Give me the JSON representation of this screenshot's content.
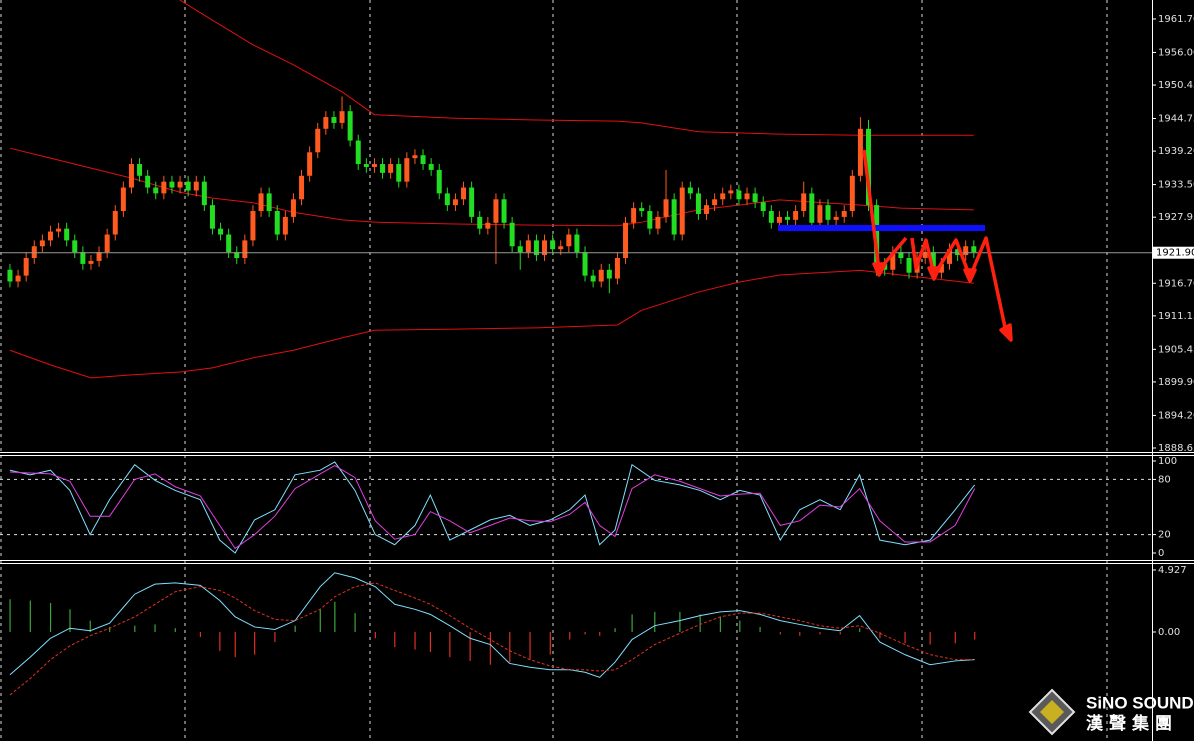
{
  "chart_data": [
    {
      "type": "candlestick",
      "xlim": [
        -1.23,
        141
      ],
      "ylim": [
        1887.97,
        1964.93
      ],
      "yticks": [
        {
          "value": 1961.7,
          "label": "1961.70"
        },
        {
          "value": 1956,
          "label": "1956.00"
        },
        1950.45,
        1944.75,
        {
          "value": 1939.2,
          "label": "1939.20"
        },
        {
          "value": 1933.5,
          "label": "1933.50"
        },
        1927.95,
        {
          "value": 1916.7,
          "label": "1916.70"
        },
        1911.15,
        1905.45,
        {
          "value": 1899.9,
          "label": "1899.90"
        },
        {
          "value": 1894.2,
          "label": "1894.20"
        },
        1888.65
      ],
      "current_price": {
        "value": 1921.9,
        "label": "1921.90"
      },
      "up_color": "#ff5a1f",
      "down_color": "#22dd22",
      "candles": [
        [
          1919,
          1920,
          1916,
          1917
        ],
        [
          1917,
          1919,
          1916,
          1918
        ],
        [
          1918,
          1922,
          1917,
          1921
        ],
        [
          1921,
          1924,
          1920,
          1923
        ],
        [
          1923,
          1925,
          1922,
          1924
        ],
        [
          1924,
          1926.5,
          1923,
          1925.5
        ],
        [
          1925.5,
          1927,
          1924.5,
          1926
        ],
        [
          1926,
          1927,
          1923,
          1924
        ],
        [
          1924,
          1925,
          1921,
          1922
        ],
        [
          1922,
          1923,
          1919,
          1920
        ],
        [
          1920,
          1921.5,
          1919,
          1920.5
        ],
        [
          1920.5,
          1923,
          1919.5,
          1922
        ],
        [
          1922,
          1926,
          1921,
          1925
        ],
        [
          1925,
          1930,
          1924,
          1929
        ],
        [
          1929,
          1934,
          1928,
          1933
        ],
        [
          1933,
          1938,
          1932,
          1937
        ],
        [
          1937,
          1938,
          1934,
          1935
        ],
        [
          1935,
          1936,
          1932,
          1933
        ],
        [
          1933,
          1934,
          1931,
          1932
        ],
        [
          1932,
          1935,
          1931,
          1934
        ],
        [
          1934,
          1935,
          1932,
          1933
        ],
        [
          1933,
          1935,
          1932,
          1934
        ],
        [
          1934,
          1935,
          1931.5,
          1932.5
        ],
        [
          1932.5,
          1935,
          1931.5,
          1934
        ],
        [
          1934,
          1935,
          1929,
          1930
        ],
        [
          1930,
          1931,
          1925,
          1926
        ],
        [
          1926,
          1927,
          1924,
          1925
        ],
        [
          1925,
          1926,
          1921,
          1922
        ],
        [
          1922,
          1923,
          1920,
          1921
        ],
        [
          1921,
          1925,
          1920,
          1924
        ],
        [
          1924,
          1930,
          1923,
          1929
        ],
        [
          1929,
          1933,
          1928,
          1932
        ],
        [
          1932,
          1933,
          1928,
          1929
        ],
        [
          1929,
          1930,
          1924,
          1925
        ],
        [
          1925,
          1929,
          1924,
          1928
        ],
        [
          1928,
          1932,
          1927,
          1931
        ],
        [
          1931,
          1936,
          1930,
          1935
        ],
        [
          1935,
          1940,
          1934,
          1939
        ],
        [
          1939,
          1944,
          1938,
          1943
        ],
        [
          1943,
          1946,
          1942,
          1945
        ],
        [
          1945,
          1946,
          1943,
          1944
        ],
        [
          1944,
          1948.5,
          1943,
          1946
        ],
        [
          1946,
          1947,
          1940,
          1941
        ],
        [
          1941,
          1942,
          1936,
          1937
        ],
        [
          1937,
          1938,
          1935.5,
          1936.5
        ],
        [
          1936.5,
          1938,
          1935.5,
          1937
        ],
        [
          1937,
          1938,
          1934.5,
          1935.5
        ],
        [
          1935.5,
          1938,
          1934.5,
          1937
        ],
        [
          1937,
          1938,
          1933,
          1934
        ],
        [
          1934,
          1939,
          1933,
          1938
        ],
        [
          1938,
          1939.5,
          1937,
          1938.5
        ],
        [
          1938.5,
          1939.5,
          1936,
          1937
        ],
        [
          1937,
          1938,
          1935,
          1936
        ],
        [
          1936,
          1937,
          1931,
          1932
        ],
        [
          1932,
          1933,
          1929,
          1930
        ],
        [
          1930,
          1932,
          1929,
          1931
        ],
        [
          1931,
          1934,
          1930,
          1933
        ],
        [
          1933,
          1934,
          1927,
          1928
        ],
        [
          1928,
          1929,
          1925,
          1926
        ],
        [
          1926,
          1928,
          1925,
          1927
        ],
        [
          1927,
          1932,
          1920,
          1931
        ],
        [
          1931,
          1932,
          1926,
          1927
        ],
        [
          1927,
          1928,
          1922,
          1923
        ],
        [
          1923,
          1924,
          1919,
          1922
        ],
        [
          1922,
          1925,
          1921,
          1924
        ],
        [
          1924,
          1925,
          1920.5,
          1921.5
        ],
        [
          1921.5,
          1925,
          1920.5,
          1924
        ],
        [
          1924,
          1925,
          1921.5,
          1922.5
        ],
        [
          1922.5,
          1924,
          1921.5,
          1923
        ],
        [
          1923,
          1926,
          1922,
          1925
        ],
        [
          1925,
          1926,
          1921,
          1922
        ],
        [
          1922,
          1923,
          1917,
          1918
        ],
        [
          1918,
          1919,
          1916,
          1917
        ],
        [
          1917,
          1920,
          1916,
          1919
        ],
        [
          1919,
          1920,
          1915,
          1917.5
        ],
        [
          1917.5,
          1922,
          1916.5,
          1921
        ],
        [
          1921,
          1928,
          1920,
          1927
        ],
        [
          1927,
          1930.5,
          1926,
          1929.5
        ],
        [
          1929.5,
          1930.5,
          1928,
          1929
        ],
        [
          1929,
          1930,
          1925,
          1926
        ],
        [
          1926,
          1929,
          1925,
          1928
        ],
        [
          1928,
          1936,
          1927,
          1931
        ],
        [
          1931,
          1932,
          1924,
          1925
        ],
        [
          1925,
          1934,
          1924,
          1933
        ],
        [
          1933,
          1934,
          1931,
          1932
        ],
        [
          1932,
          1933,
          1927.5,
          1928.5
        ],
        [
          1928.5,
          1931,
          1927.5,
          1930
        ],
        [
          1930,
          1932,
          1929,
          1931
        ],
        [
          1931,
          1933,
          1930,
          1932
        ],
        [
          1932,
          1933.5,
          1931,
          1932.5
        ],
        [
          1932.5,
          1933.5,
          1930,
          1931
        ],
        [
          1931,
          1933,
          1930,
          1932
        ],
        [
          1932,
          1933,
          1929.5,
          1930.5
        ],
        [
          1930.5,
          1931.5,
          1928,
          1929
        ],
        [
          1929,
          1930,
          1926,
          1927
        ],
        [
          1927,
          1929,
          1926,
          1928
        ],
        [
          1928,
          1929,
          1926.5,
          1927.5
        ],
        [
          1927.5,
          1930,
          1926.5,
          1929
        ],
        [
          1929,
          1934,
          1928,
          1932
        ],
        [
          1932,
          1933,
          1926,
          1927
        ],
        [
          1927,
          1931,
          1926,
          1930
        ],
        [
          1930,
          1931,
          1926.5,
          1927.5
        ],
        [
          1927.5,
          1929,
          1926.5,
          1928
        ],
        [
          1928,
          1930,
          1927,
          1929
        ],
        [
          1929,
          1936,
          1928,
          1935
        ],
        [
          1935,
          1945,
          1934,
          1943
        ],
        [
          1943,
          1944.5,
          1929,
          1930
        ],
        [
          1930,
          1931,
          1918,
          1920
        ],
        [
          1920,
          1921,
          1918,
          1919
        ],
        [
          1919,
          1923,
          1918,
          1922
        ],
        [
          1922,
          1923,
          1920,
          1921
        ],
        [
          1921,
          1922,
          1917.5,
          1918.5
        ],
        [
          1918.5,
          1922,
          1917.5,
          1921
        ],
        [
          1921,
          1923,
          1920,
          1922
        ],
        [
          1922,
          1923,
          1917.5,
          1918.5
        ],
        [
          1918.5,
          1921,
          1917.5,
          1920
        ],
        [
          1920,
          1923.5,
          1919,
          1922.5
        ],
        [
          1922.5,
          1923.5,
          1920.5,
          1921.5
        ],
        [
          1921.5,
          1924,
          1920.5,
          1923
        ],
        [
          1923,
          1924,
          1921,
          1922
        ]
      ],
      "band_x": [
        0,
        5,
        10,
        15,
        21,
        25,
        30,
        35,
        41,
        45,
        55,
        65,
        75,
        78,
        85,
        90,
        95,
        105,
        110,
        119
      ],
      "bands": [
        {
          "color": "#e01010",
          "values": [
            null,
            null,
            null,
            null,
            1964.9,
            1961.5,
            1957.3,
            1953.9,
            1949.3,
            1945.4,
            1944.8,
            1944.5,
            1944.3,
            1944.0,
            1942.5,
            1942.3,
            1942.1,
            1941.9,
            1941.9,
            1941.9
          ]
        },
        {
          "color": "#e01010",
          "values": [
            1939.7,
            1938.0,
            1936.3,
            1934.6,
            1932.2,
            1931.2,
            1930.4,
            1928.8,
            1927.5,
            1927.1,
            1926.8,
            1926.6,
            1926.5,
            1927.1,
            1929.2,
            1930.0,
            1930.9,
            1930.0,
            1929.5,
            1929.2
          ]
        },
        {
          "color": "#e01010",
          "values": [
            1905.3,
            1902.8,
            1900.6,
            1901.1,
            1901.6,
            1902.3,
            1904.0,
            1905.3,
            1907.4,
            1908.7,
            1908.9,
            1909.1,
            1909.6,
            1912.1,
            1915.2,
            1916.9,
            1918.1,
            1918.9,
            1918.1,
            1916.7
          ]
        }
      ]
    },
    {
      "type": "line",
      "xlim": [
        -1.23,
        141
      ],
      "ylim": [
        -7.6,
        108.7
      ],
      "yticks": [
        0,
        20,
        80,
        100
      ],
      "x": [
        0,
        2.5,
        5,
        7.4,
        9.9,
        12.3,
        15.4,
        17.9,
        20.4,
        23.5,
        25.9,
        27.8,
        30.2,
        32.7,
        35.2,
        38.3,
        40.1,
        42.6,
        45.1,
        47.5,
        50,
        51.9,
        54.3,
        56.8,
        59.3,
        61.7,
        64.2,
        66.7,
        69.1,
        71,
        72.8,
        74.7,
        76.8,
        79.6,
        82.7,
        85.2,
        87.7,
        90.1,
        92.6,
        95.1,
        97.5,
        100,
        102.5,
        104.9,
        107.4,
        110.5,
        113.6,
        116.7,
        119.1
      ],
      "series": [
        {
          "color": "#7fe0ff",
          "values": [
            90,
            85,
            90,
            68,
            20,
            58,
            96,
            79,
            68,
            58,
            14,
            0,
            36,
            47,
            85,
            90,
            99,
            68,
            20,
            9,
            30,
            63,
            14,
            25,
            36,
            41,
            30,
            36,
            47,
            63,
            9,
            25,
            96,
            79,
            74,
            68,
            58,
            68,
            63,
            14,
            47,
            58,
            47,
            85,
            14,
            9,
            14,
            47,
            74
          ]
        },
        {
          "color": "#e040e0",
          "values": [
            88,
            87,
            86,
            78,
            40,
            40,
            80,
            86,
            72,
            62,
            30,
            5,
            20,
            40,
            70,
            86,
            95,
            82,
            35,
            15,
            20,
            45,
            35,
            22,
            30,
            38,
            35,
            34,
            42,
            55,
            30,
            18,
            70,
            85,
            78,
            70,
            62,
            64,
            65,
            30,
            35,
            52,
            50,
            70,
            35,
            12,
            12,
            30,
            70
          ]
        }
      ]
    },
    {
      "type": "combo",
      "xlim": [
        -1.23,
        141
      ],
      "ylim": [
        -8.66,
        5.48
      ],
      "yticks": [
        4.927,
        {
          "value": 0,
          "label": "0.00"
        }
      ],
      "x": [
        0,
        2.5,
        5,
        7.4,
        9.9,
        12.3,
        15.4,
        17.9,
        20.4,
        23.5,
        25.9,
        27.8,
        30.2,
        32.7,
        35.2,
        38.3,
        40.1,
        42.6,
        45.1,
        47.5,
        50,
        51.9,
        54.3,
        56.8,
        59.3,
        61.7,
        64.2,
        66.7,
        69.1,
        71,
        72.8,
        74.7,
        76.8,
        79.6,
        82.7,
        85.2,
        87.7,
        90.1,
        92.6,
        95.1,
        97.5,
        100,
        102.5,
        104.9,
        107.4,
        110.5,
        113.6,
        116.7,
        119.1
      ],
      "histogram": {
        "up_color": "#3aa63a",
        "down_color": "#e03020",
        "values": [
          2.6,
          2.5,
          2.3,
          1.8,
          0.9,
          0.4,
          0.5,
          0.6,
          0.3,
          -0.4,
          -1.5,
          -2.0,
          -1.8,
          -0.8,
          0.5,
          1.8,
          2.4,
          1.5,
          -0.5,
          -1.2,
          -1.4,
          -1.6,
          -2.0,
          -2.3,
          -2.6,
          -2.4,
          -2.2,
          -1.8,
          -0.6,
          -0.2,
          -0.3,
          0.3,
          1.4,
          1.6,
          1.6,
          1.4,
          1.2,
          0.9,
          0.4,
          -0.2,
          -0.3,
          -0.2,
          -0.2,
          0.3,
          -0.5,
          -0.9,
          -1.0,
          -0.9,
          -0.6
        ]
      },
      "series": [
        {
          "color": "#7fe0ff",
          "values": [
            -3.4,
            -2.0,
            -0.5,
            0.3,
            0.1,
            0.7,
            3.0,
            3.8,
            3.9,
            3.7,
            2.5,
            1.2,
            0.4,
            0.2,
            0.9,
            3.6,
            4.7,
            4.3,
            3.6,
            2.2,
            1.8,
            1.4,
            0.5,
            -0.5,
            -1.0,
            -2.5,
            -2.8,
            -3.0,
            -3.0,
            -3.2,
            -3.6,
            -2.4,
            -0.6,
            0.5,
            0.9,
            1.3,
            1.6,
            1.7,
            1.4,
            0.9,
            0.6,
            0.3,
            0.1,
            1.3,
            -0.8,
            -1.8,
            -2.6,
            -2.3,
            -2.2
          ]
        },
        {
          "color": "#e03020",
          "dashed": true,
          "values": [
            -5.0,
            -3.7,
            -2.2,
            -1.1,
            -0.3,
            0.3,
            1.2,
            2.2,
            3.2,
            3.6,
            3.3,
            2.7,
            1.7,
            1.0,
            0.9,
            1.8,
            2.8,
            3.6,
            3.9,
            3.3,
            2.7,
            2.2,
            1.3,
            0.3,
            -0.6,
            -1.5,
            -2.2,
            -2.7,
            -3.0,
            -3.0,
            -3.1,
            -3.0,
            -2.2,
            -1.0,
            -0.1,
            0.6,
            1.2,
            1.5,
            1.5,
            1.2,
            0.9,
            0.5,
            0.3,
            0.5,
            -0.1,
            -1.0,
            -1.8,
            -2.2,
            -2.2
          ]
        }
      ]
    }
  ],
  "logo": {
    "name": "SiNO SOUND",
    "chinese": "漢聲集團"
  }
}
